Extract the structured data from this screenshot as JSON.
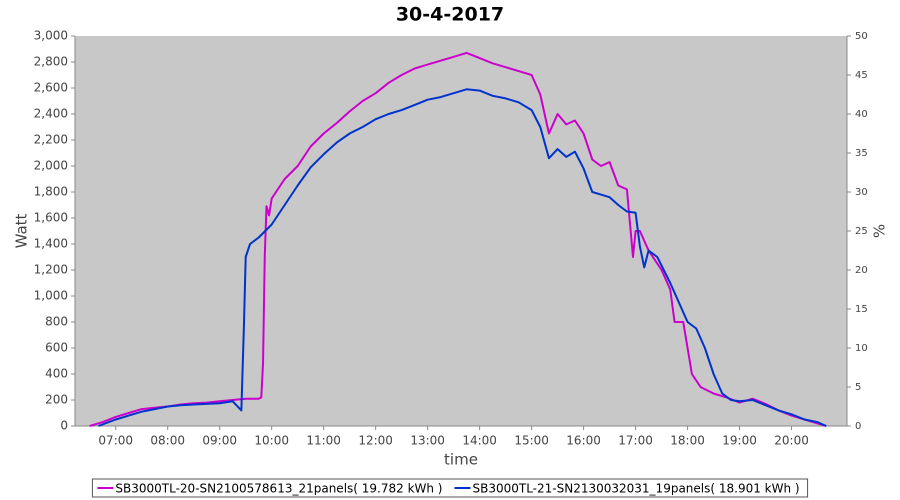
{
  "chart_data": {
    "type": "line",
    "title": "30-4-2017",
    "x_label": "time",
    "y_label": "Watt",
    "y2_label": "%",
    "xlim": [
      "06:13",
      "21:04"
    ],
    "xticks": [
      "07:00",
      "08:00",
      "09:00",
      "10:00",
      "11:00",
      "12:00",
      "13:00",
      "14:00",
      "15:00",
      "16:00",
      "17:00",
      "18:00",
      "19:00",
      "20:00"
    ],
    "ylim": [
      0,
      3000
    ],
    "yticks": [
      0,
      200,
      400,
      600,
      800,
      {
        "value": 1000,
        "label": "1,000"
      },
      {
        "value": 1200,
        "label": "1,200"
      },
      {
        "value": 1400,
        "label": "1,400"
      },
      {
        "value": 1600,
        "label": "1,600"
      },
      {
        "value": 1800,
        "label": "1,800"
      },
      {
        "value": 2000,
        "label": "2,000"
      },
      {
        "value": 2200,
        "label": "2,200"
      },
      {
        "value": 2400,
        "label": "2,400"
      },
      {
        "value": 2600,
        "label": "2,600"
      },
      {
        "value": 2800,
        "label": "2,800"
      },
      {
        "value": 3000,
        "label": "3,000"
      }
    ],
    "y2lim": [
      0,
      50
    ],
    "y2ticks": [
      0,
      5,
      10,
      15,
      20,
      25,
      30,
      35,
      40,
      45,
      50
    ],
    "grid": false,
    "legend": "bottom",
    "series": [
      {
        "name": "SB3000TL-20-SN2100578613_21panels( 19.782 kWh )",
        "color": "#cc00cc",
        "x": [
          "06:30",
          "06:45",
          "07:00",
          "07:15",
          "07:30",
          "07:45",
          "08:00",
          "08:15",
          "08:30",
          "08:45",
          "09:00",
          "09:15",
          "09:30",
          "09:45",
          "09:48",
          "09:50",
          "09:52",
          "09:54",
          "09:57",
          "10:00",
          "10:15",
          "10:30",
          "10:45",
          "11:00",
          "11:15",
          "11:30",
          "11:45",
          "12:00",
          "12:15",
          "12:30",
          "12:45",
          "13:00",
          "13:15",
          "13:30",
          "13:45",
          "14:00",
          "14:15",
          "14:30",
          "14:45",
          "15:00",
          "15:10",
          "15:20",
          "15:30",
          "15:40",
          "15:50",
          "16:00",
          "16:10",
          "16:20",
          "16:30",
          "16:40",
          "16:50",
          "16:57",
          "17:00",
          "17:05",
          "17:15",
          "17:30",
          "17:40",
          "17:45",
          "17:55",
          "18:05",
          "18:15",
          "18:30",
          "18:45",
          "19:00",
          "19:15",
          "19:30",
          "19:45",
          "20:00",
          "20:15",
          "20:30",
          "20:40"
        ],
        "values": [
          0,
          30,
          70,
          100,
          130,
          140,
          150,
          165,
          175,
          180,
          190,
          200,
          210,
          210,
          220,
          480,
          1300,
          1690,
          1620,
          1750,
          1900,
          2000,
          2150,
          2250,
          2330,
          2420,
          2500,
          2560,
          2640,
          2700,
          2750,
          2780,
          2810,
          2840,
          2870,
          2830,
          2790,
          2760,
          2730,
          2700,
          2550,
          2250,
          2400,
          2320,
          2350,
          2250,
          2050,
          2000,
          2030,
          1850,
          1820,
          1300,
          1500,
          1500,
          1350,
          1200,
          1050,
          800,
          800,
          400,
          300,
          250,
          220,
          180,
          210,
          170,
          120,
          80,
          50,
          20,
          0
        ]
      },
      {
        "name": "SB3000TL-21-SN2130032031_19panels( 18.901 kWh )",
        "color": "#0033cc",
        "x": [
          "06:40",
          "07:00",
          "07:15",
          "07:30",
          "07:45",
          "08:00",
          "08:15",
          "08:30",
          "08:45",
          "09:00",
          "09:15",
          "09:25",
          "09:28",
          "09:30",
          "09:35",
          "09:45",
          "10:00",
          "10:15",
          "10:30",
          "10:45",
          "11:00",
          "11:15",
          "11:30",
          "11:45",
          "12:00",
          "12:15",
          "12:30",
          "12:45",
          "13:00",
          "13:15",
          "13:30",
          "13:45",
          "14:00",
          "14:15",
          "14:30",
          "14:45",
          "15:00",
          "15:10",
          "15:20",
          "15:30",
          "15:40",
          "15:50",
          "16:00",
          "16:10",
          "16:20",
          "16:30",
          "16:40",
          "16:50",
          "17:00",
          "17:05",
          "17:10",
          "17:15",
          "17:25",
          "17:40",
          "17:50",
          "18:00",
          "18:10",
          "18:20",
          "18:30",
          "18:40",
          "18:50",
          "19:00",
          "19:15",
          "19:30",
          "19:45",
          "20:00",
          "20:15",
          "20:30",
          "20:40"
        ],
        "values": [
          0,
          50,
          80,
          110,
          130,
          150,
          160,
          165,
          170,
          175,
          190,
          120,
          780,
          1300,
          1400,
          1450,
          1550,
          1700,
          1850,
          1990,
          2090,
          2180,
          2250,
          2300,
          2360,
          2400,
          2430,
          2470,
          2510,
          2530,
          2560,
          2590,
          2580,
          2540,
          2520,
          2490,
          2430,
          2300,
          2060,
          2130,
          2070,
          2110,
          1980,
          1800,
          1780,
          1760,
          1700,
          1650,
          1640,
          1380,
          1220,
          1350,
          1300,
          1100,
          950,
          800,
          750,
          600,
          400,
          250,
          200,
          190,
          200,
          160,
          120,
          90,
          50,
          30,
          0
        ]
      }
    ]
  }
}
